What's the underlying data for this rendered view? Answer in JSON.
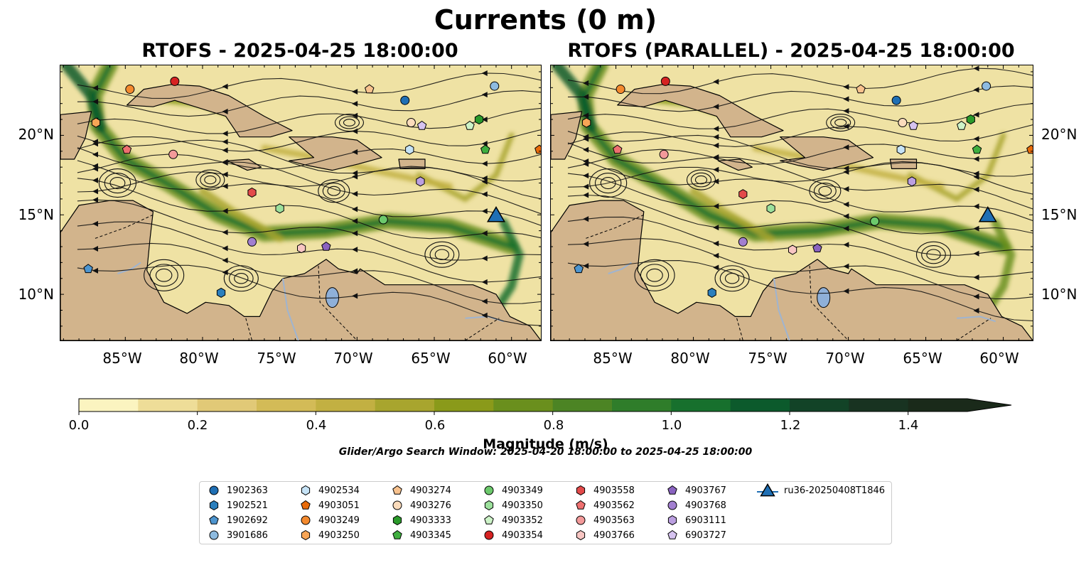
{
  "title": "Currents (0 m)",
  "panels": [
    {
      "title": "RTOFS - 2025-04-25 18:00:00"
    },
    {
      "title": "RTOFS (PARALLEL) - 2025-04-25 18:00:00"
    }
  ],
  "axes": {
    "lat_labels": [
      "20°N",
      "15°N",
      "10°N"
    ],
    "lon_labels": [
      "85°W",
      "80°W",
      "75°W",
      "70°W",
      "65°W",
      "60°W"
    ]
  },
  "colorbar": {
    "label": "Magnitude (m/s)",
    "ticks": [
      "0.0",
      "0.2",
      "0.4",
      "0.6",
      "0.8",
      "1.0",
      "1.2",
      "1.4"
    ],
    "range": [
      0.0,
      1.5
    ],
    "step": 0.1,
    "colors": [
      "#fbf4c0",
      "#eedd98",
      "#e1c977",
      "#d3bb57",
      "#c2b042",
      "#a8a52e",
      "#8a9a1a",
      "#6a8f1d",
      "#4c8424",
      "#2f7d2a",
      "#17702d",
      "#0c5a2c",
      "#124327",
      "#183321",
      "#1a2a1a"
    ]
  },
  "search_window": "Glider/Argo Search Window: 2025-04-20 18:00:00 to 2025-04-25 18:00:00",
  "legend": [
    {
      "label": "1902363",
      "color": "#1f6fb4",
      "marker": "circle"
    },
    {
      "label": "1902521",
      "color": "#2b7fbd",
      "marker": "hexagon"
    },
    {
      "label": "1902692",
      "color": "#4d95cf",
      "marker": "pentagon"
    },
    {
      "label": "3901686",
      "color": "#8ebbe0",
      "marker": "circle"
    },
    {
      "label": "4902534",
      "color": "#c6e3f6",
      "marker": "hexagon"
    },
    {
      "label": "4903051",
      "color": "#e86b0a",
      "marker": "pentagon"
    },
    {
      "label": "4903249",
      "color": "#f48a2e",
      "marker": "circle"
    },
    {
      "label": "4903250",
      "color": "#f7a556",
      "marker": "hexagon"
    },
    {
      "label": "4903274",
      "color": "#f8c28e",
      "marker": "pentagon"
    },
    {
      "label": "4903276",
      "color": "#fbdcbc",
      "marker": "circle"
    },
    {
      "label": "4903333",
      "color": "#2b9a2b",
      "marker": "hexagon"
    },
    {
      "label": "4903345",
      "color": "#3fae3f",
      "marker": "pentagon"
    },
    {
      "label": "4903349",
      "color": "#6cc96c",
      "marker": "circle"
    },
    {
      "label": "4903350",
      "color": "#9ce09c",
      "marker": "hexagon"
    },
    {
      "label": "4903352",
      "color": "#cdf3c8",
      "marker": "pentagon"
    },
    {
      "label": "4903354",
      "color": "#d62222",
      "marker": "circle"
    },
    {
      "label": "4903558",
      "color": "#e34a4a",
      "marker": "hexagon"
    },
    {
      "label": "4903562",
      "color": "#ee7070",
      "marker": "pentagon"
    },
    {
      "label": "4903563",
      "color": "#f39a9a",
      "marker": "circle"
    },
    {
      "label": "4903766",
      "color": "#f8c6c3",
      "marker": "hexagon"
    },
    {
      "label": "4903767",
      "color": "#8a63c0",
      "marker": "pentagon"
    },
    {
      "label": "4903768",
      "color": "#a27fd0",
      "marker": "circle"
    },
    {
      "label": "6903111",
      "color": "#bb9fe0",
      "marker": "hexagon"
    },
    {
      "label": "6903727",
      "color": "#d6c3f0",
      "marker": "pentagon"
    },
    {
      "label": "ru36-20250408T1846",
      "color": "#1f6fb4",
      "marker": "triangle"
    }
  ],
  "map_markers": {
    "left": [
      {
        "id": "4903249",
        "lon": -84.7,
        "lat": 22.9
      },
      {
        "id": "4903354",
        "lon": -81.8,
        "lat": 23.4
      },
      {
        "id": "4903250",
        "lon": -86.9,
        "lat": 20.8
      },
      {
        "id": "4903562",
        "lon": -84.9,
        "lat": 19.1
      },
      {
        "id": "4903563",
        "lon": -81.9,
        "lat": 18.8
      },
      {
        "id": "4903558",
        "lon": -76.8,
        "lat": 16.4
      },
      {
        "id": "4903350",
        "lon": -75.0,
        "lat": 15.4
      },
      {
        "id": "4903768",
        "lon": -76.8,
        "lat": 13.3
      },
      {
        "id": "4903766",
        "lon": -73.6,
        "lat": 12.9
      },
      {
        "id": "4903767",
        "lon": -72.0,
        "lat": 13.0
      },
      {
        "id": "4903349",
        "lon": -68.3,
        "lat": 14.7
      },
      {
        "id": "4903274",
        "lon": -69.2,
        "lat": 22.9
      },
      {
        "id": "1902363",
        "lon": -66.9,
        "lat": 22.2
      },
      {
        "id": "4903276",
        "lon": -66.5,
        "lat": 20.8
      },
      {
        "id": "6903727",
        "lon": -65.8,
        "lat": 20.6
      },
      {
        "id": "4902534",
        "lon": -66.6,
        "lat": 19.1
      },
      {
        "id": "6903111",
        "lon": -65.9,
        "lat": 17.1
      },
      {
        "id": "3901686",
        "lon": -61.1,
        "lat": 23.1
      },
      {
        "id": "4903333",
        "lon": -62.1,
        "lat": 21.0
      },
      {
        "id": "4903352",
        "lon": -62.7,
        "lat": 20.6
      },
      {
        "id": "4903345",
        "lon": -61.7,
        "lat": 19.1
      },
      {
        "id": "4903051",
        "lon": -58.2,
        "lat": 19.1
      },
      {
        "id": "1902692",
        "lon": -87.4,
        "lat": 11.6
      },
      {
        "id": "1902521",
        "lon": -78.8,
        "lat": 10.1
      },
      {
        "id": "ru36-20250408T1846",
        "lon": -61.0,
        "lat": 15.0
      }
    ],
    "right": [
      {
        "id": "4903249",
        "lon": -84.7,
        "lat": 22.9
      },
      {
        "id": "4903354",
        "lon": -81.8,
        "lat": 23.4
      },
      {
        "id": "4903250",
        "lon": -86.9,
        "lat": 20.8
      },
      {
        "id": "4903562",
        "lon": -84.9,
        "lat": 19.1
      },
      {
        "id": "4903563",
        "lon": -81.9,
        "lat": 18.8
      },
      {
        "id": "4903558",
        "lon": -76.8,
        "lat": 16.3
      },
      {
        "id": "4903350",
        "lon": -75.0,
        "lat": 15.4
      },
      {
        "id": "4903768",
        "lon": -76.8,
        "lat": 13.3
      },
      {
        "id": "4903766",
        "lon": -73.6,
        "lat": 12.8
      },
      {
        "id": "4903767",
        "lon": -72.0,
        "lat": 12.9
      },
      {
        "id": "4903349",
        "lon": -68.3,
        "lat": 14.6
      },
      {
        "id": "4903274",
        "lon": -69.2,
        "lat": 22.9
      },
      {
        "id": "1902363",
        "lon": -66.9,
        "lat": 22.2
      },
      {
        "id": "4903276",
        "lon": -66.5,
        "lat": 20.8
      },
      {
        "id": "6903727",
        "lon": -65.8,
        "lat": 20.6
      },
      {
        "id": "4902534",
        "lon": -66.6,
        "lat": 19.1
      },
      {
        "id": "6903111",
        "lon": -65.9,
        "lat": 17.1
      },
      {
        "id": "3901686",
        "lon": -61.1,
        "lat": 23.1
      },
      {
        "id": "4903333",
        "lon": -62.1,
        "lat": 21.0
      },
      {
        "id": "4903352",
        "lon": -62.7,
        "lat": 20.6
      },
      {
        "id": "4903345",
        "lon": -61.7,
        "lat": 19.1
      },
      {
        "id": "4903051",
        "lon": -58.2,
        "lat": 19.1
      },
      {
        "id": "1902692",
        "lon": -87.4,
        "lat": 11.6
      },
      {
        "id": "1902521",
        "lon": -78.8,
        "lat": 10.1
      },
      {
        "id": "ru36-20250408T1846",
        "lon": -61.0,
        "lat": 15.0
      }
    ]
  }
}
